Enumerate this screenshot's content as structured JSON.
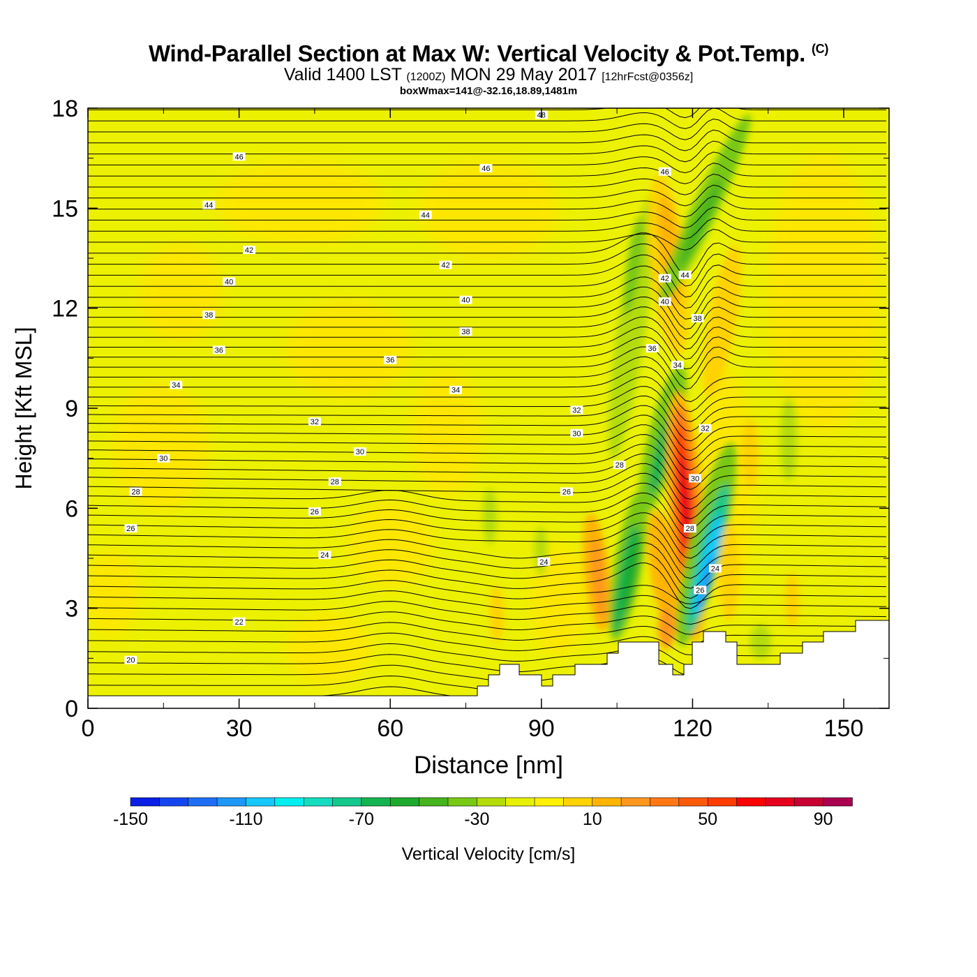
{
  "header": {
    "title": "Wind-Parallel Section at Max W: Vertical Velocity & Pot.Temp.",
    "copyright": "(C)",
    "valid_prefix": "Valid 1400 LST",
    "valid_zulu": "(1200Z)",
    "valid_date": "MON 29 May 2017",
    "forecast": "[12hrFcst@0356z]",
    "subtitle": "boxWmax=141@-32.16,18.89,1481m"
  },
  "chart_data": {
    "type": "contour",
    "xlabel": "Distance [nm]",
    "ylabel": "Height [Kft MSL]",
    "xlim": [
      0,
      159
    ],
    "ylim": [
      0,
      18
    ],
    "xticks": [
      0,
      30,
      60,
      90,
      120,
      150
    ],
    "yticks": [
      0,
      3,
      6,
      9,
      12,
      15,
      18
    ],
    "colorbar": {
      "label": "Vertical Velocity [cm/s]",
      "tick_labels": [
        "-150",
        "-110",
        "-70",
        "-30",
        "10",
        "50",
        "90"
      ],
      "colors": [
        "#0a1ee6",
        "#1446f0",
        "#1e6ef5",
        "#1e96fa",
        "#14c8fa",
        "#00f0f0",
        "#14dcbe",
        "#14c88c",
        "#14b450",
        "#1eaa2d",
        "#46b41e",
        "#78c814",
        "#b4dc0a",
        "#e6f000",
        "#fff000",
        "#ffd200",
        "#ffb400",
        "#ff961e",
        "#ff7814",
        "#ff5a0a",
        "#ff3c00",
        "#ff0000",
        "#e6001e",
        "#c80032",
        "#aa0050"
      ]
    },
    "theta_labels": [
      {
        "text": "20",
        "x": 8.5,
        "y": 1.45
      },
      {
        "text": "22",
        "x": 30,
        "y": 2.6
      },
      {
        "text": "24",
        "x": 47,
        "y": 4.6
      },
      {
        "text": "24",
        "x": 90.5,
        "y": 4.4
      },
      {
        "text": "26",
        "x": 8.5,
        "y": 5.4
      },
      {
        "text": "26",
        "x": 45,
        "y": 5.9
      },
      {
        "text": "26",
        "x": 95,
        "y": 6.5
      },
      {
        "text": "28",
        "x": 9.5,
        "y": 6.5
      },
      {
        "text": "28",
        "x": 49,
        "y": 6.8
      },
      {
        "text": "30",
        "x": 15,
        "y": 7.5
      },
      {
        "text": "30",
        "x": 54,
        "y": 7.7
      },
      {
        "text": "30",
        "x": 97,
        "y": 8.25
      },
      {
        "text": "32",
        "x": 45,
        "y": 8.6
      },
      {
        "text": "32",
        "x": 97,
        "y": 8.95
      },
      {
        "text": "34",
        "x": 17.5,
        "y": 9.7
      },
      {
        "text": "34",
        "x": 73,
        "y": 9.55
      },
      {
        "text": "36",
        "x": 26,
        "y": 10.75
      },
      {
        "text": "36",
        "x": 60,
        "y": 10.45
      },
      {
        "text": "36",
        "x": 112,
        "y": 10.8
      },
      {
        "text": "38",
        "x": 24,
        "y": 11.8
      },
      {
        "text": "38",
        "x": 75,
        "y": 11.3
      },
      {
        "text": "40",
        "x": 28,
        "y": 12.8
      },
      {
        "text": "40",
        "x": 75,
        "y": 12.25
      },
      {
        "text": "42",
        "x": 32,
        "y": 13.75
      },
      {
        "text": "42",
        "x": 71,
        "y": 13.3
      },
      {
        "text": "44",
        "x": 24,
        "y": 15.1
      },
      {
        "text": "44",
        "x": 67,
        "y": 14.8
      },
      {
        "text": "46",
        "x": 30,
        "y": 16.55
      },
      {
        "text": "46",
        "x": 79,
        "y": 16.2
      },
      {
        "text": "46",
        "x": 114.5,
        "y": 16.1
      },
      {
        "text": "48",
        "x": 90,
        "y": 17.8
      },
      {
        "text": "44",
        "x": 118.5,
        "y": 13.0
      },
      {
        "text": "42",
        "x": 114.5,
        "y": 12.9
      },
      {
        "text": "40",
        "x": 114.5,
        "y": 12.2
      },
      {
        "text": "38",
        "x": 121,
        "y": 11.7
      },
      {
        "text": "34",
        "x": 117,
        "y": 10.3
      },
      {
        "text": "32",
        "x": 122.5,
        "y": 8.4
      },
      {
        "text": "30",
        "x": 120.5,
        "y": 6.9
      },
      {
        "text": "28",
        "x": 119.5,
        "y": 5.4
      },
      {
        "text": "28",
        "x": 105.5,
        "y": 7.3
      },
      {
        "text": "24",
        "x": 124.5,
        "y": 4.2
      },
      {
        "text": "26",
        "x": 121.5,
        "y": 3.55
      }
    ]
  }
}
